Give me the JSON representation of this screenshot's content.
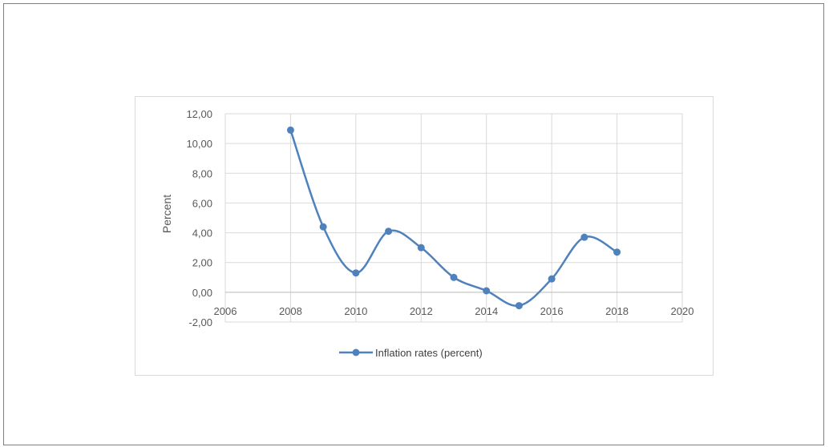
{
  "chart_data": {
    "type": "line",
    "ylabel": "Percent",
    "xlim": [
      2006,
      2020
    ],
    "ylim": [
      -2,
      12
    ],
    "x_ticks": [
      2006,
      2008,
      2010,
      2012,
      2014,
      2016,
      2018,
      2020
    ],
    "y_ticks": [
      -2,
      0,
      2,
      4,
      6,
      8,
      10,
      12
    ],
    "y_tick_labels": [
      "-2,00",
      "0,00",
      "2,00",
      "4,00",
      "6,00",
      "8,00",
      "10,00",
      "12,00"
    ],
    "grid": true,
    "smooth": true,
    "legend_position": "bottom",
    "series": [
      {
        "name": "Inflation rates (percent)",
        "color": "#4f81bd",
        "x": [
          2008,
          2009,
          2010,
          2011,
          2012,
          2013,
          2014,
          2015,
          2016,
          2017,
          2018
        ],
        "y": [
          10.9,
          4.4,
          1.3,
          4.1,
          3.0,
          1.0,
          0.1,
          -0.9,
          0.9,
          3.7,
          2.7
        ]
      }
    ]
  }
}
